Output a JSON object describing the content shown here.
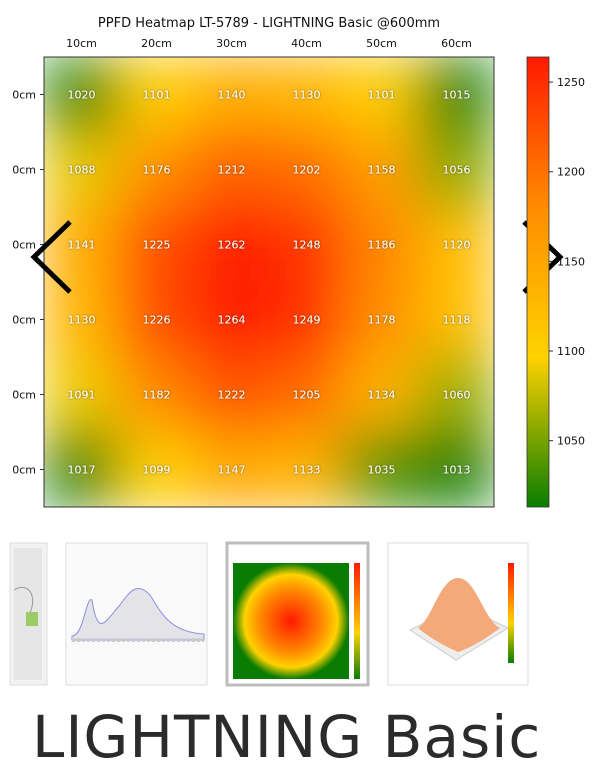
{
  "chart_data": {
    "type": "heatmap",
    "title": "PPFD Heatmap LT-5789 - LIGHTNING Basic @600mm",
    "categories": [
      "10cm",
      "20cm",
      "30cm",
      "40cm",
      "50cm",
      "60cm"
    ],
    "y_categories": [
      "0cm",
      "0cm",
      "0cm",
      "0cm",
      "0cm",
      "0cm"
    ],
    "values": [
      [
        1020,
        1101,
        1140,
        1130,
        1101,
        1015
      ],
      [
        1088,
        1176,
        1212,
        1202,
        1158,
        1056
      ],
      [
        1141,
        1225,
        1262,
        1248,
        1186,
        1120
      ],
      [
        1130,
        1226,
        1264,
        1249,
        1178,
        1118
      ],
      [
        1091,
        1182,
        1222,
        1205,
        1134,
        1060
      ],
      [
        1017,
        1099,
        1147,
        1133,
        1035,
        1013
      ]
    ],
    "clim": [
      1013,
      1264
    ],
    "cticks": [
      1050,
      1100,
      1150,
      1200,
      1250
    ],
    "colormap": [
      "#0a7d00",
      "#ffd200",
      "#ff8c00",
      "#ff1a00"
    ]
  },
  "product": {
    "title": "LIGHTNING Basic"
  }
}
